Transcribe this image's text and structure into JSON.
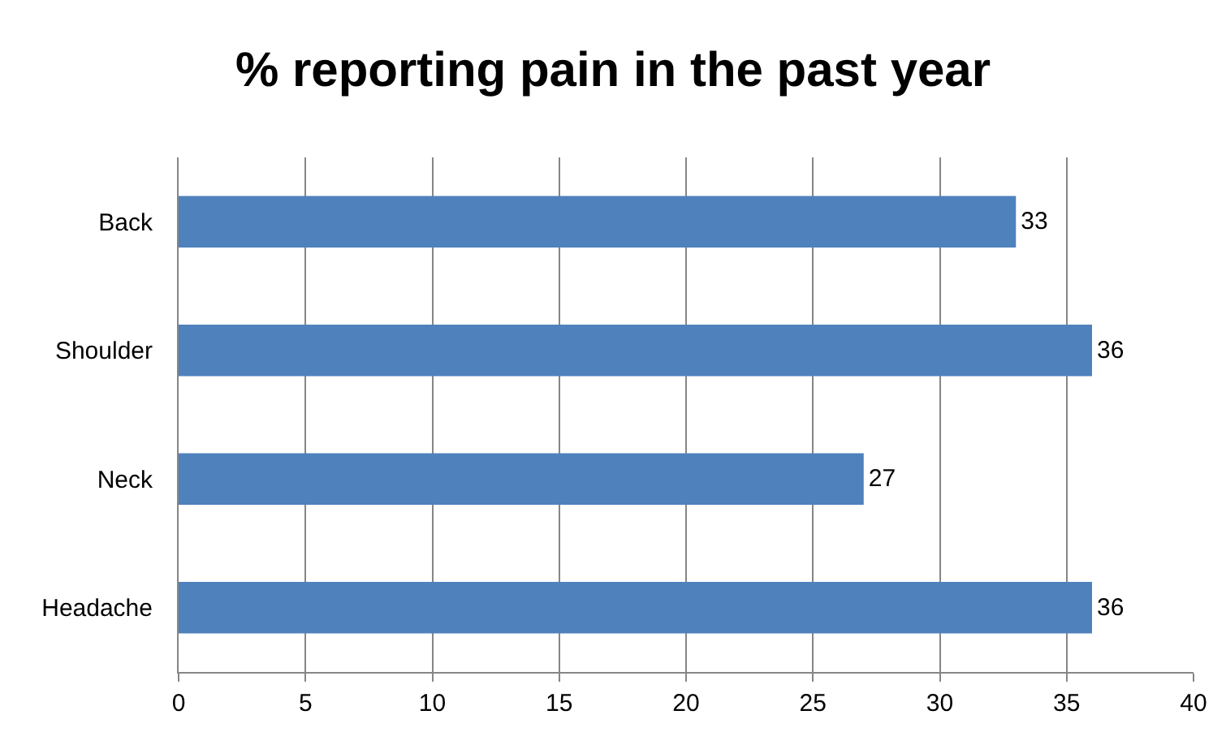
{
  "chart_data": {
    "type": "bar",
    "orientation": "horizontal",
    "title": "% reporting pain in the past year",
    "categories": [
      "Back",
      "Shoulder",
      "Neck",
      "Headache"
    ],
    "values": [
      33,
      36,
      27,
      36
    ],
    "color": "#4f81bd",
    "xlim": [
      0,
      40
    ],
    "xticks": [
      0,
      5,
      10,
      15,
      20,
      25,
      30,
      35,
      40
    ],
    "grid": "x",
    "data_labels": true,
    "legend": false
  }
}
